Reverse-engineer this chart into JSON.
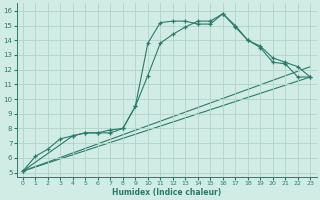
{
  "xlabel": "Humidex (Indice chaleur)",
  "bg_color": "#d0ece4",
  "grid_color": "#b0d4c8",
  "line_color": "#2d7a6a",
  "xlim": [
    -0.5,
    23.5
  ],
  "ylim": [
    4.7,
    16.5
  ],
  "xticks": [
    0,
    1,
    2,
    3,
    4,
    5,
    6,
    7,
    8,
    9,
    10,
    11,
    12,
    13,
    14,
    15,
    16,
    17,
    18,
    19,
    20,
    21,
    22,
    23
  ],
  "yticks": [
    5,
    6,
    7,
    8,
    9,
    10,
    11,
    12,
    13,
    14,
    15,
    16
  ],
  "line1_x": [
    0,
    1,
    2,
    3,
    4,
    5,
    6,
    7,
    8,
    9,
    10,
    11,
    12,
    13,
    14,
    15,
    16,
    17,
    18,
    19,
    20,
    21,
    22,
    23
  ],
  "line1_y": [
    5.1,
    6.1,
    6.6,
    7.3,
    7.5,
    7.7,
    7.7,
    7.7,
    8.0,
    9.5,
    11.6,
    13.8,
    14.4,
    14.9,
    15.3,
    15.3,
    15.8,
    14.9,
    14.0,
    13.6,
    12.8,
    12.5,
    12.2,
    11.5
  ],
  "line2_x": [
    0,
    4,
    5,
    6,
    7,
    8,
    9,
    10,
    11,
    12,
    13,
    14,
    15,
    16,
    17,
    18,
    19,
    20,
    21,
    22,
    23
  ],
  "line2_y": [
    5.1,
    7.5,
    7.7,
    7.7,
    7.9,
    8.0,
    9.5,
    13.8,
    15.2,
    15.3,
    15.3,
    15.1,
    15.1,
    15.8,
    15.0,
    14.0,
    13.5,
    12.5,
    12.4,
    11.5,
    11.5
  ],
  "line3_x": [
    0,
    23
  ],
  "line3_y": [
    5.1,
    11.5
  ],
  "line4_x": [
    0,
    23
  ],
  "line4_y": [
    5.1,
    12.2
  ]
}
